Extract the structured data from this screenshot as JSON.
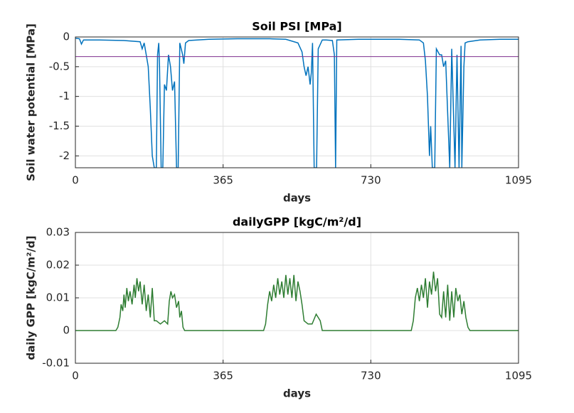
{
  "chart_data": [
    {
      "type": "line",
      "title": "Soil PSI [MPa]",
      "x_label": "days",
      "y_label": "Soil water potential [MPa]",
      "xlim": [
        0,
        1095
      ],
      "xticks": [
        0,
        365,
        730,
        1095
      ],
      "ylim": [
        -2.2,
        0
      ],
      "yticks": [
        0,
        -0.5,
        -1,
        -1.5,
        -2
      ],
      "grid": true,
      "reference_line": {
        "value": -0.33,
        "color": "#7e2f8e"
      },
      "series": [
        {
          "color": "#0072bd",
          "x": [
            0,
            10,
            15,
            20,
            60,
            120,
            160,
            165,
            170,
            175,
            180,
            185,
            190,
            195,
            200,
            203,
            206,
            208,
            212,
            216,
            220,
            225,
            230,
            235,
            240,
            245,
            250,
            254,
            258,
            265,
            268,
            272,
            280,
            330,
            400,
            480,
            520,
            550,
            560,
            565,
            570,
            575,
            580,
            583,
            586,
            590,
            596,
            600,
            610,
            620,
            635,
            640,
            643,
            646,
            700,
            800,
            850,
            860,
            865,
            870,
            875,
            878,
            882,
            888,
            892,
            900,
            905,
            910,
            915,
            925,
            930,
            938,
            943,
            948,
            953,
            955,
            960,
            963,
            970,
            1000,
            1050,
            1095
          ],
          "values": [
            -0.02,
            -0.03,
            -0.12,
            -0.05,
            -0.05,
            -0.06,
            -0.08,
            -0.2,
            -0.1,
            -0.3,
            -0.5,
            -1.2,
            -2.0,
            -2.2,
            -2.2,
            -0.3,
            -0.1,
            -0.5,
            -2.2,
            -2.2,
            -0.8,
            -0.9,
            -0.3,
            -0.5,
            -0.9,
            -0.75,
            -2.2,
            -2.2,
            -0.1,
            -0.3,
            -0.45,
            -0.1,
            -0.06,
            -0.04,
            -0.03,
            -0.03,
            -0.04,
            -0.1,
            -0.25,
            -0.5,
            -0.65,
            -0.5,
            -0.8,
            -0.6,
            -0.1,
            -2.2,
            -2.2,
            -0.2,
            -0.05,
            -0.05,
            -0.06,
            -0.3,
            -2.2,
            -0.05,
            -0.04,
            -0.04,
            -0.05,
            -0.1,
            -0.4,
            -1.0,
            -2.0,
            -1.5,
            -2.2,
            -2.2,
            -0.2,
            -0.3,
            -0.3,
            -0.5,
            -0.4,
            -2.2,
            -0.2,
            -2.2,
            -0.3,
            -2.2,
            -0.15,
            -2.2,
            -0.5,
            -0.1,
            -0.08,
            -0.05,
            -0.04,
            -0.04
          ]
        }
      ]
    },
    {
      "type": "line",
      "title": "dailyGPP [kgC/m²/d]",
      "x_label": "days",
      "y_label": "daily GPP [kgC/m²/d]",
      "xlim": [
        0,
        1095
      ],
      "xticks": [
        0,
        365,
        730,
        1095
      ],
      "ylim": [
        -0.01,
        0.03
      ],
      "yticks": [
        0.03,
        0.02,
        0.01,
        0,
        -0.01
      ],
      "grid": true,
      "series": [
        {
          "color": "#2e7d32",
          "x": [
            0,
            100,
            105,
            110,
            113,
            117,
            120,
            123,
            127,
            131,
            135,
            140,
            145,
            148,
            152,
            156,
            160,
            165,
            170,
            175,
            180,
            185,
            190,
            195,
            200,
            210,
            220,
            228,
            232,
            236,
            240,
            245,
            250,
            255,
            258,
            262,
            266,
            270,
            465,
            470,
            475,
            480,
            485,
            490,
            495,
            500,
            505,
            510,
            515,
            520,
            525,
            530,
            535,
            540,
            545,
            550,
            555,
            560,
            565,
            575,
            585,
            595,
            600,
            605,
            610,
            830,
            835,
            840,
            845,
            850,
            855,
            860,
            865,
            870,
            875,
            880,
            885,
            890,
            895,
            900,
            905,
            910,
            915,
            920,
            925,
            930,
            935,
            940,
            945,
            950,
            955,
            960,
            965,
            970,
            975,
            1095
          ],
          "values": [
            0,
            0,
            0.001,
            0.004,
            0.008,
            0.006,
            0.011,
            0.007,
            0.013,
            0.009,
            0.012,
            0.008,
            0.014,
            0.01,
            0.016,
            0.012,
            0.015,
            0.008,
            0.014,
            0.006,
            0.011,
            0.004,
            0.013,
            0.003,
            0.003,
            0.002,
            0.003,
            0.002,
            0.009,
            0.012,
            0.01,
            0.011,
            0.007,
            0.009,
            0.004,
            0.006,
            0.001,
            0,
            0,
            0.002,
            0.008,
            0.012,
            0.009,
            0.014,
            0.01,
            0.016,
            0.011,
            0.015,
            0.01,
            0.017,
            0.011,
            0.016,
            0.01,
            0.017,
            0.009,
            0.015,
            0.012,
            0.008,
            0.003,
            0.002,
            0.002,
            0.005,
            0.004,
            0.003,
            0,
            0,
            0.003,
            0.01,
            0.013,
            0.009,
            0.014,
            0.01,
            0.016,
            0.007,
            0.015,
            0.011,
            0.018,
            0.012,
            0.016,
            0.005,
            0.004,
            0.012,
            0.004,
            0.014,
            0.003,
            0.012,
            0.004,
            0.013,
            0.009,
            0.011,
            0.005,
            0.009,
            0.004,
            0.001,
            0,
            0
          ]
        }
      ]
    }
  ]
}
